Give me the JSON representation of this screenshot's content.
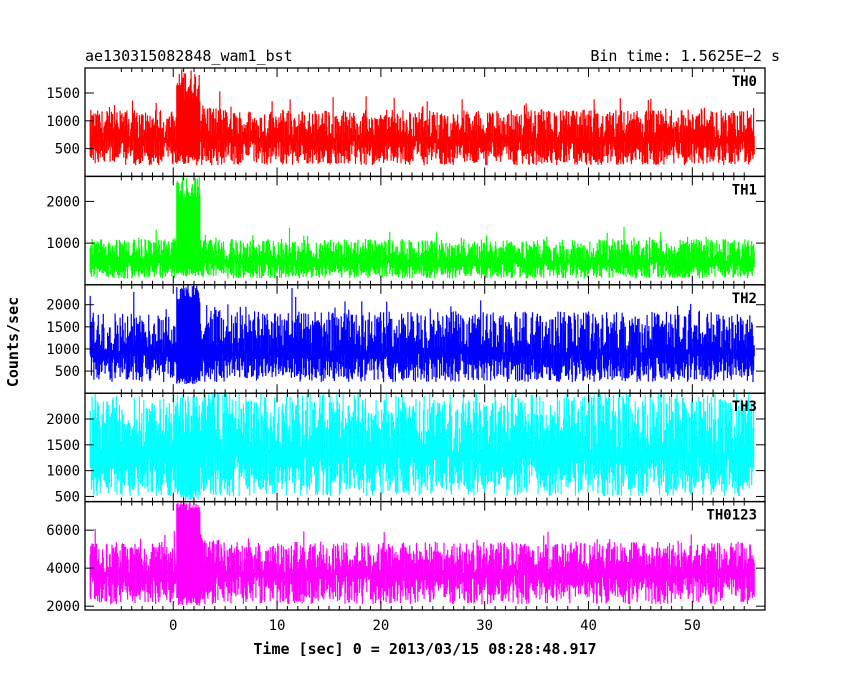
{
  "chart_data": {
    "type": "line",
    "title": "ae130315082848_wam1_bst",
    "bin_time": "Bin time: 1.5625E−2 s",
    "xlabel": "Time [sec] 0 = 2013/03/15 08:28:48.917",
    "ylabel": "Counts/sec",
    "xlim": [
      -8.5,
      57
    ],
    "x_ticks": [
      0,
      10,
      20,
      30,
      40,
      50
    ],
    "data_range": [
      -8,
      56
    ],
    "grid": false,
    "panels": [
      {
        "label": "TH0",
        "color": "#ff0000",
        "ylim": [
          0,
          1950
        ],
        "y_ticks": [
          500,
          1000,
          1500
        ],
        "series": {
          "baseline": 650,
          "noise_low": 450,
          "noise_high": 550,
          "peak_max": 1950,
          "burst_start": 0.3,
          "burst_end": 2.6,
          "burst_level": 1350,
          "burst_low_floor": 200,
          "dip_low": 500
        }
      },
      {
        "label": "TH1",
        "color": "#00ff00",
        "ylim": [
          0,
          2600
        ],
        "y_ticks": [
          1000,
          2000
        ],
        "series": {
          "baseline": 550,
          "noise_low": 400,
          "noise_high": 550,
          "peak_max": 2600,
          "burst_start": 0.3,
          "burst_end": 2.6,
          "burst_level": 2000,
          "burst_low_floor": 200,
          "dip_low": 500
        }
      },
      {
        "label": "TH2",
        "color": "#0000ff",
        "ylim": [
          0,
          2450
        ],
        "y_ticks": [
          500,
          1000,
          1500,
          2000
        ],
        "series": {
          "baseline": 900,
          "noise_low": 650,
          "noise_high": 950,
          "peak_max": 2450,
          "burst_start": 0.3,
          "burst_end": 2.6,
          "burst_level": 1900,
          "burst_low_floor": 200,
          "dip_low": 500
        }
      },
      {
        "label": "TH3",
        "color": "#00ffff",
        "ylim": [
          400,
          2500
        ],
        "y_ticks": [
          500,
          1000,
          1500,
          2000
        ],
        "series": {
          "baseline": 1300,
          "noise_low": 800,
          "noise_high": 1200,
          "peak_max": 2500,
          "burst_start": 0.3,
          "burst_end": 2.6,
          "burst_level": 1700,
          "burst_low_floor": 420,
          "dip_low": 800
        }
      },
      {
        "label": "TH0123",
        "color": "#ff00ff",
        "ylim": [
          1800,
          7500
        ],
        "y_ticks": [
          2000,
          4000,
          6000
        ],
        "series": {
          "baseline": 3700,
          "noise_low": 1600,
          "noise_high": 1700,
          "peak_max": 7500,
          "burst_start": 0.3,
          "burst_end": 2.6,
          "burst_level": 7000,
          "burst_low_floor": 2000,
          "dip_low": 1500
        }
      }
    ]
  }
}
